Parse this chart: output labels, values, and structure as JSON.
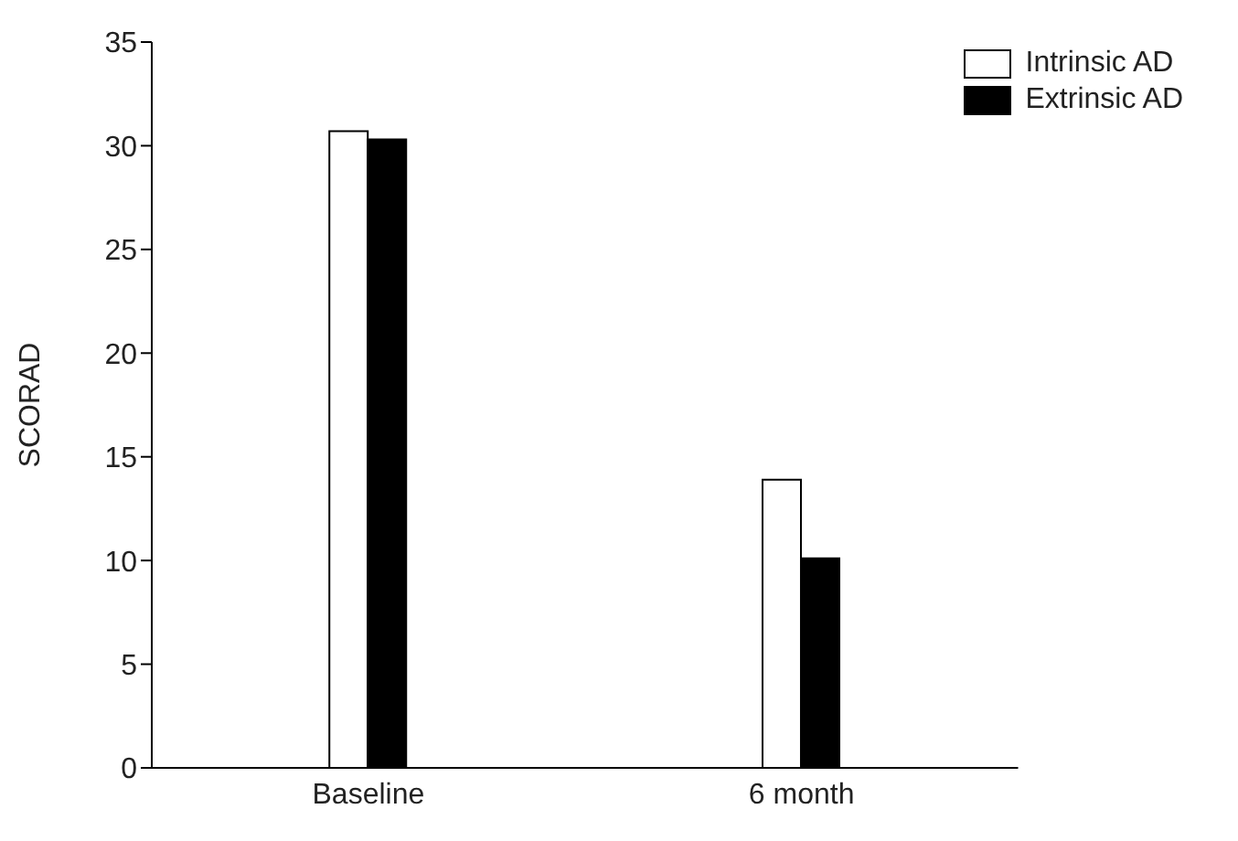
{
  "chart_data": {
    "type": "bar",
    "ylabel": "SCORAD",
    "categories": [
      "Baseline",
      "6 month"
    ],
    "series": [
      {
        "name": "Intrinsic AD",
        "color": "#ffffff",
        "values": [
          30.7,
          13.9
        ]
      },
      {
        "name": "Extrinsic AD",
        "color": "#000000",
        "values": [
          30.3,
          10.1
        ]
      }
    ],
    "ylim": [
      0,
      35
    ],
    "yticks": [
      0,
      5,
      10,
      15,
      20,
      25,
      30,
      35
    ],
    "grid": false,
    "legend": "top right"
  }
}
